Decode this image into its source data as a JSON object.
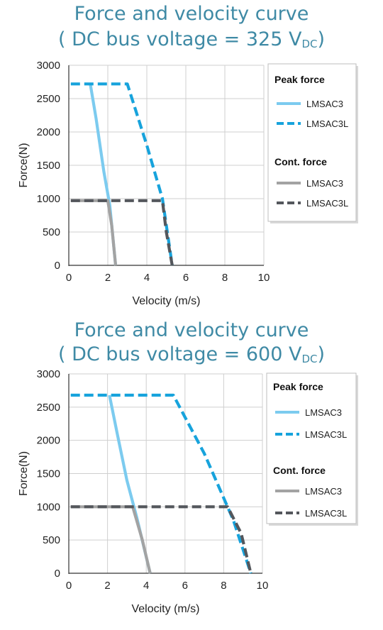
{
  "chart_data": [
    {
      "type": "line",
      "title": {
        "line1": "Force and velocity curve",
        "line2_prefix": "( DC bus voltage = 325 V",
        "line2_sub": "DC",
        "line2_suffix": ")"
      },
      "xlabel": "Velocity (m/s)",
      "ylabel": "Force(N)",
      "xlim": [
        0,
        10
      ],
      "ylim": [
        0,
        3000
      ],
      "xticks": [
        "0",
        "2",
        "4",
        "6",
        "8",
        "10"
      ],
      "yticks": [
        "0",
        "500",
        "1000",
        "1500",
        "2000",
        "2500",
        "3000"
      ],
      "grid": true,
      "legend_placement": "right",
      "legend_groups": [
        {
          "header": "Peak force",
          "items": [
            {
              "label": "LMSAC3",
              "color": "#7ccbef",
              "dashed": false
            },
            {
              "label": "LMSAC3L",
              "color": "#17a3dc",
              "dashed": true
            }
          ]
        },
        {
          "header": "Cont. force",
          "items": [
            {
              "label": "LMSAC3",
              "color": "#a3a3a3",
              "dashed": false
            },
            {
              "label": "LMSAC3L",
              "color": "#54575c",
              "dashed": true
            }
          ]
        }
      ],
      "series": [
        {
          "name": "Peak force LMSAC3",
          "color": "#7ccbef",
          "dashed": false,
          "points": [
            [
              1.1,
              2720
            ],
            [
              1.4,
              2200
            ],
            [
              1.8,
              1400
            ],
            [
              2.1,
              900
            ],
            [
              2.4,
              0
            ]
          ]
        },
        {
          "name": "Peak force LMSAC3L",
          "color": "#17a3dc",
          "dashed": true,
          "points": [
            [
              0.1,
              2720
            ],
            [
              3.0,
              2720
            ],
            [
              4.0,
              1800
            ],
            [
              4.8,
              1000
            ],
            [
              5.3,
              0
            ]
          ]
        },
        {
          "name": "Cont. force LMSAC3",
          "color": "#a3a3a3",
          "dashed": false,
          "points": [
            [
              0.1,
              970
            ],
            [
              2.0,
              970
            ],
            [
              2.2,
              600
            ],
            [
              2.4,
              0
            ]
          ]
        },
        {
          "name": "Cont. force LMSAC3L",
          "color": "#54575c",
          "dashed": true,
          "points": [
            [
              0.1,
              970
            ],
            [
              4.8,
              970
            ],
            [
              5.0,
              500
            ],
            [
              5.3,
              0
            ]
          ]
        }
      ]
    },
    {
      "type": "line",
      "title": {
        "line1": "Force and velocity curve",
        "line2_prefix": "( DC bus voltage = 600 V",
        "line2_sub": "DC",
        "line2_suffix": ")"
      },
      "xlabel": "Velocity (m/s)",
      "ylabel": "Force(N)",
      "xlim": [
        0,
        10
      ],
      "ylim": [
        0,
        3000
      ],
      "xticks": [
        "0",
        "2",
        "4",
        "6",
        "8",
        "10"
      ],
      "yticks": [
        "0",
        "500",
        "1000",
        "1500",
        "2000",
        "2500",
        "3000"
      ],
      "grid": true,
      "legend_placement": "right",
      "legend_groups": [
        {
          "header": "Peak force",
          "items": [
            {
              "label": "LMSAC3",
              "color": "#7ccbef",
              "dashed": false
            },
            {
              "label": "LMSAC3L",
              "color": "#17a3dc",
              "dashed": true
            }
          ]
        },
        {
          "header": "Cont. force",
          "items": [
            {
              "label": "LMSAC3",
              "color": "#a3a3a3",
              "dashed": false
            },
            {
              "label": "LMSAC3L",
              "color": "#54575c",
              "dashed": true
            }
          ]
        }
      ],
      "series": [
        {
          "name": "Peak force LMSAC3",
          "color": "#7ccbef",
          "dashed": false,
          "points": [
            [
              2.1,
              2680
            ],
            [
              2.5,
              2100
            ],
            [
              3.0,
              1400
            ],
            [
              3.5,
              850
            ],
            [
              4.2,
              0
            ]
          ]
        },
        {
          "name": "Peak force LMSAC3L",
          "color": "#17a3dc",
          "dashed": true,
          "points": [
            [
              0.1,
              2680
            ],
            [
              5.4,
              2680
            ],
            [
              7.0,
              1800
            ],
            [
              8.5,
              800
            ],
            [
              9.4,
              0
            ]
          ]
        },
        {
          "name": "Cont. force LMSAC3",
          "color": "#a3a3a3",
          "dashed": false,
          "points": [
            [
              0.1,
              1000
            ],
            [
              3.3,
              1000
            ],
            [
              3.8,
              500
            ],
            [
              4.2,
              0
            ]
          ]
        },
        {
          "name": "Cont. force LMSAC3L",
          "color": "#54575c",
          "dashed": true,
          "points": [
            [
              0.1,
              1000
            ],
            [
              8.2,
              1000
            ],
            [
              8.9,
              600
            ],
            [
              9.4,
              0
            ]
          ]
        }
      ]
    }
  ]
}
